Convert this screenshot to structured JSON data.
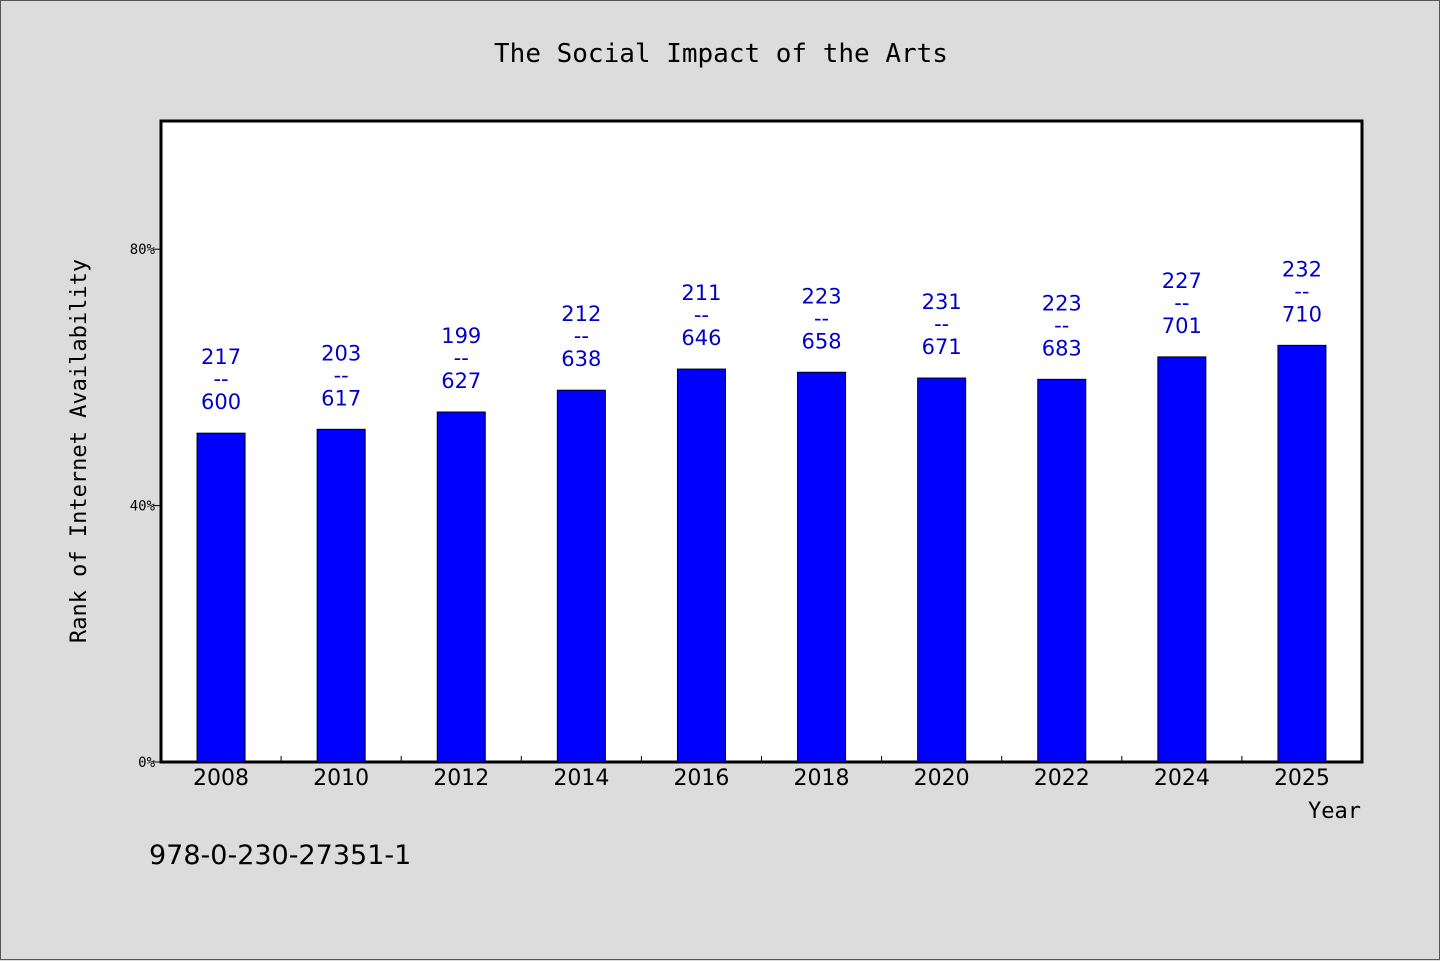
{
  "chart_data": {
    "type": "bar",
    "title": "The Social Impact of the Arts",
    "xlabel": "Year",
    "ylabel": "Rank of Internet Availability",
    "categories": [
      "2008",
      "2010",
      "2012",
      "2014",
      "2016",
      "2018",
      "2020",
      "2022",
      "2024",
      "2025"
    ],
    "values": [
      51.3,
      51.9,
      54.6,
      58.0,
      61.3,
      60.8,
      59.9,
      59.7,
      63.2,
      65.0
    ],
    "value_unit": "%",
    "data_labels_top": [
      "217",
      "203",
      "199",
      "212",
      "211",
      "223",
      "231",
      "223",
      "227",
      "232"
    ],
    "data_labels_sep": "--",
    "data_labels_bottom": [
      "600",
      "617",
      "627",
      "638",
      "646",
      "658",
      "671",
      "683",
      "701",
      "710"
    ],
    "ylim": [
      0,
      100
    ],
    "yticks": [
      0,
      40,
      80
    ],
    "ytick_labels": [
      "0%",
      "40%",
      "80%"
    ],
    "grid": false,
    "bar_color": "#0000ff",
    "label_color": "#0000cc",
    "background_color": "#dcdcdc",
    "plot_background": "#ffffff"
  },
  "footer": {
    "isbn": "978-0-230-27351-1"
  }
}
